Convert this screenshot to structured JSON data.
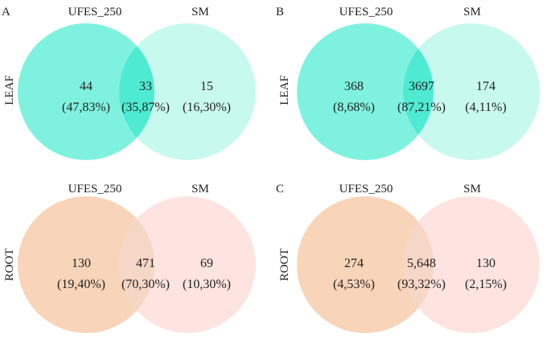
{
  "colors": {
    "leaf_left": "#7ff2df",
    "leaf_right": "#c8f9ee",
    "leaf_overlap": "#4eebd2",
    "root_left": "#f8d4b8",
    "root_right": "#fde4e0",
    "root_overlap": "#f6d6c6"
  },
  "panels": [
    {
      "id": "A-leaf",
      "letter": "A",
      "row_label": "LEAF",
      "left_title": "UFES_250",
      "right_title": "SM",
      "left_count": "44",
      "left_pct": "(47,83%)",
      "mid_count": "33",
      "mid_pct": "(35,87%)",
      "right_count": "15",
      "right_pct": "(16,30%)"
    },
    {
      "id": "B-leaf",
      "letter": "B",
      "row_label": "LEAF",
      "left_title": "UFES_250",
      "right_title": "SM",
      "left_count": "368",
      "left_pct": "(8,68%)",
      "mid_count": "3697",
      "mid_pct": "(87,21%)",
      "right_count": "174",
      "right_pct": "(4,11%)"
    },
    {
      "id": "A-root",
      "letter": "",
      "row_label": "ROOT",
      "left_title": "UFES_250",
      "right_title": "SM",
      "left_count": "130",
      "left_pct": "(19,40%)",
      "mid_count": "471",
      "mid_pct": "(70,30%)",
      "right_count": "69",
      "right_pct": "(10,30%)"
    },
    {
      "id": "C-root",
      "letter": "C",
      "row_label": "ROOT",
      "left_title": "UFES_250",
      "right_title": "SM",
      "left_count": "274",
      "left_pct": "(4,53%)",
      "mid_count": "5,648",
      "mid_pct": "(93,32%)",
      "right_count": "130",
      "right_pct": "(2,15%)"
    }
  ]
}
